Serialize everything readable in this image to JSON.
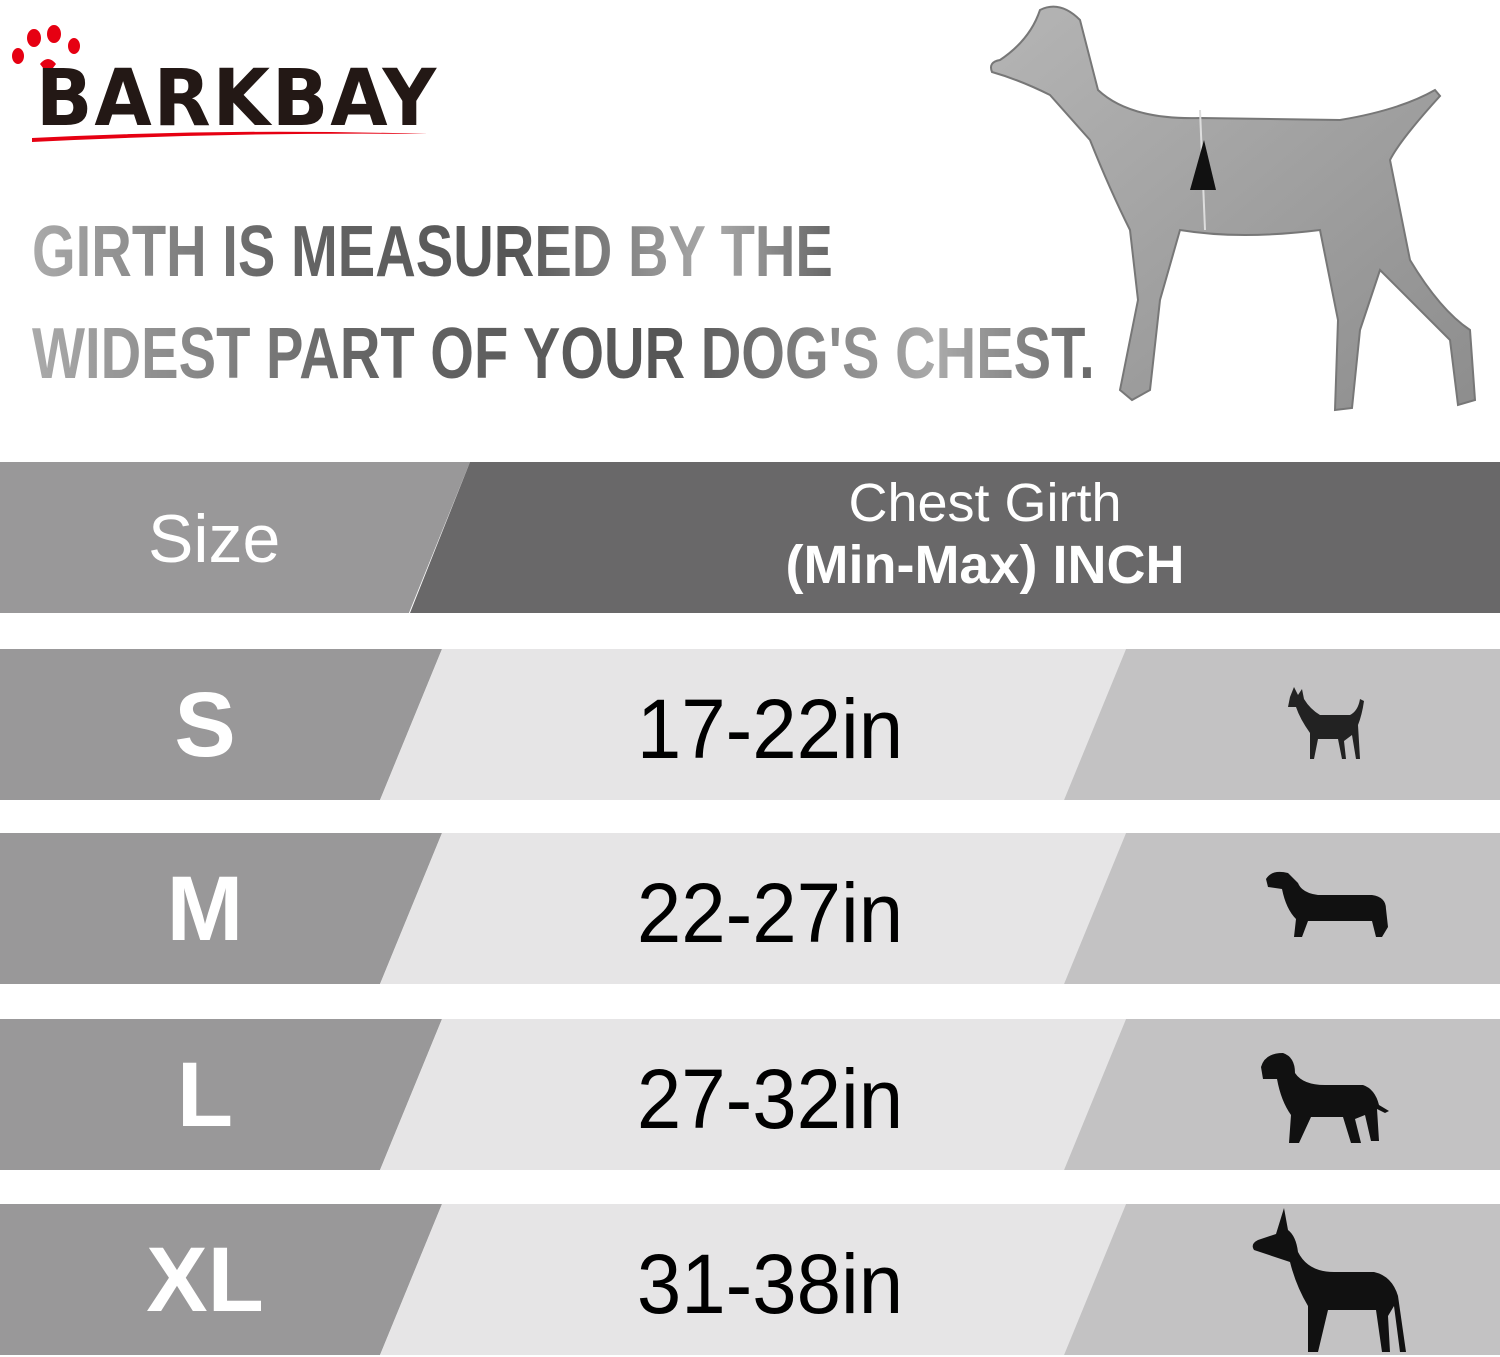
{
  "brand": {
    "logo_text": "BARKBAY",
    "accent": "#e60012"
  },
  "headline": {
    "line1": "GIRTH IS MEASURED BY THE",
    "line2": "WIDEST PART OF YOUR DOG'S CHEST."
  },
  "table": {
    "header": {
      "size": "Size",
      "girth_line1": "Chest Girth",
      "girth_line2": "(Min-Max)  INCH"
    },
    "rows": [
      {
        "size": "S",
        "girth": "17-22in",
        "icon": "chihuahua-icon"
      },
      {
        "size": "M",
        "girth": "22-27in",
        "icon": "dachshund-icon"
      },
      {
        "size": "L",
        "girth": "27-32in",
        "icon": "labrador-icon"
      },
      {
        "size": "XL",
        "girth": "31-38in",
        "icon": "great-dane-icon"
      }
    ]
  },
  "colors": {
    "header_left": "#999899",
    "header_right": "#696869",
    "row_left": "#999899",
    "row_mid": "#e6e5e6",
    "row_right": "#c3c2c3"
  }
}
